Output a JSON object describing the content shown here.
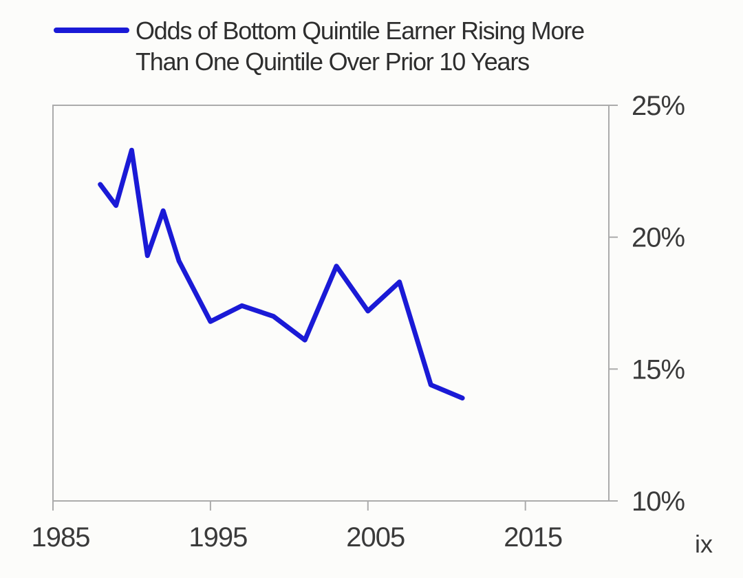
{
  "page": {
    "background": "#fcfcfa",
    "footer_page_marker": "ix"
  },
  "legend": {
    "lines": [
      "Odds of Bottom Quintile Earner Rising More",
      "Than One Quintile Over Prior 10 Years"
    ],
    "swatch_color": "#1a1ad6"
  },
  "chart_data": {
    "type": "line",
    "title": "Odds of Bottom Quintile Earner Rising More Than One Quintile Over Prior 10 Years",
    "series": [
      {
        "name": "Odds of Bottom Quintile Earner Rising More Than One Quintile Over Prior 10 Years",
        "color": "#1a1ad6",
        "x": [
          1988,
          1989,
          1990,
          1991,
          1992,
          1993,
          1995,
          1997,
          1999,
          2001,
          2003,
          2005,
          2007,
          2009,
          2011
        ],
        "values": [
          22.0,
          21.2,
          23.3,
          19.3,
          21.0,
          19.1,
          16.8,
          17.4,
          17.0,
          16.1,
          18.9,
          17.2,
          18.3,
          14.4,
          13.9
        ]
      }
    ],
    "x_range": [
      1985,
      2020.3
    ],
    "y_range": [
      10,
      25
    ],
    "x_ticks": [
      1985,
      1995,
      2005,
      2015
    ],
    "x_tick_labels": [
      "1985",
      "1995",
      "2005",
      "2015"
    ],
    "y_ticks": [
      25,
      20,
      15,
      10
    ],
    "y_tick_labels": [
      "25%",
      "20%",
      "15%",
      "10%"
    ],
    "xlabel": "",
    "ylabel": "",
    "grid": false,
    "legend_position": "top-left",
    "y_axis_side": "right",
    "axis_color": "#ababab",
    "tick_label_color": "#3a3a3a"
  }
}
